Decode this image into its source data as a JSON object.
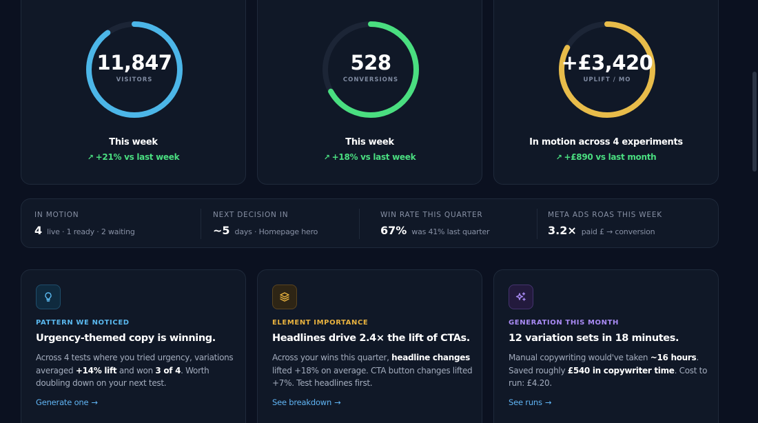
{
  "rings": [
    {
      "value": "11,847",
      "label": "VISITORS",
      "caption": "This week",
      "delta": "+21% vs last week",
      "progress": 0.9,
      "color": "#4cb6e8"
    },
    {
      "value": "528",
      "label": "CONVERSIONS",
      "caption": "This week",
      "delta": "+18% vs last week",
      "progress": 0.67,
      "color": "#4ade80"
    },
    {
      "value": "+£3,420",
      "label": "UPLIFT / MO",
      "caption": "In motion across 4 experiments",
      "delta": "+£890 vs last month",
      "progress": 0.83,
      "color": "#e8bc4a"
    }
  ],
  "stats": [
    {
      "label": "IN MOTION",
      "big": "4",
      "small": "live · 1 ready · 2 waiting"
    },
    {
      "label": "NEXT DECISION IN",
      "big": "~5",
      "small": "days · Homepage hero"
    },
    {
      "label": "WIN RATE THIS QUARTER",
      "big": "67%",
      "small": "was 41% last quarter"
    },
    {
      "label": "META ADS ROAS THIS WEEK",
      "big": "3.2×",
      "small": "paid £ → conversion"
    }
  ],
  "insights": [
    {
      "icon": "lightbulb-icon",
      "kicker": "PATTERN WE NOTICED",
      "kicker_color": "#5ab8ee",
      "title": "Urgency-themed copy is winning.",
      "body": [
        "Across 4 tests where you tried urgency, variations averaged ",
        "+14% lift",
        " and won ",
        "3 of 4",
        ". Worth doubling down on your next test."
      ],
      "link": "Generate one"
    },
    {
      "icon": "layers-icon",
      "kicker": "ELEMENT IMPORTANCE",
      "kicker_color": "#e8b23f",
      "title": "Headlines drive 2.4× the lift of CTAs.",
      "body": [
        "Across your wins this quarter, ",
        "headline changes",
        " lifted +18% on average. CTA button changes lifted +7%. Test headlines first.",
        "",
        ""
      ],
      "link": "See breakdown"
    },
    {
      "icon": "sparkles-icon",
      "kicker": "GENERATION THIS MONTH",
      "kicker_color": "#a98bf5",
      "title": "12 variation sets in 18 minutes.",
      "body": [
        "Manual copywriting would've taken ",
        "~16 hours",
        ". Saved roughly ",
        "£540 in copywriter time",
        ". Cost to run: £4.20."
      ],
      "link": "See runs"
    }
  ],
  "link_arrow": "→",
  "trend_glyph": "↗"
}
